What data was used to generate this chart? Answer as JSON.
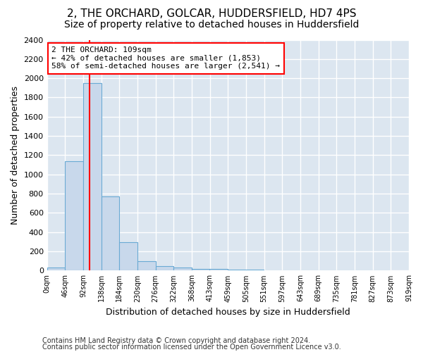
{
  "title1": "2, THE ORCHARD, GOLCAR, HUDDERSFIELD, HD7 4PS",
  "title2": "Size of property relative to detached houses in Huddersfield",
  "xlabel": "Distribution of detached houses by size in Huddersfield",
  "ylabel": "Number of detached properties",
  "bar_heights": [
    35,
    1140,
    1950,
    770,
    295,
    100,
    50,
    35,
    20,
    15,
    10,
    8,
    5,
    3,
    2,
    2,
    2,
    2,
    2
  ],
  "bin_edges": [
    0,
    46,
    92,
    138,
    184,
    230,
    276,
    322,
    368,
    413,
    459,
    505,
    551,
    597,
    643,
    689,
    735,
    781,
    827,
    873
  ],
  "bar_color": "#c8d8eb",
  "bar_edge_color": "#6aaad4",
  "vline_x": 109,
  "vline_color": "red",
  "annotation_text": "2 THE ORCHARD: 109sqm\n← 42% of detached houses are smaller (1,853)\n58% of semi-detached houses are larger (2,541) →",
  "annotation_box_color": "white",
  "annotation_box_edge": "red",
  "ylim": [
    0,
    2400
  ],
  "yticks": [
    0,
    200,
    400,
    600,
    800,
    1000,
    1200,
    1400,
    1600,
    1800,
    2000,
    2200,
    2400
  ],
  "xtick_labels": [
    "0sqm",
    "46sqm",
    "92sqm",
    "138sqm",
    "184sqm",
    "230sqm",
    "276sqm",
    "322sqm",
    "368sqm",
    "413sqm",
    "459sqm",
    "505sqm",
    "551sqm",
    "597sqm",
    "643sqm",
    "689sqm",
    "735sqm",
    "781sqm",
    "827sqm",
    "873sqm",
    "919sqm"
  ],
  "footer1": "Contains HM Land Registry data © Crown copyright and database right 2024.",
  "footer2": "Contains public sector information licensed under the Open Government Licence v3.0.",
  "plot_bg_color": "#dce6f0",
  "fig_bg_color": "#ffffff",
  "grid_color": "white",
  "title1_fontsize": 11,
  "title2_fontsize": 10,
  "xlabel_fontsize": 9,
  "ylabel_fontsize": 9,
  "annotation_fontsize": 8,
  "footer_fontsize": 7,
  "tick_fontsize": 8
}
